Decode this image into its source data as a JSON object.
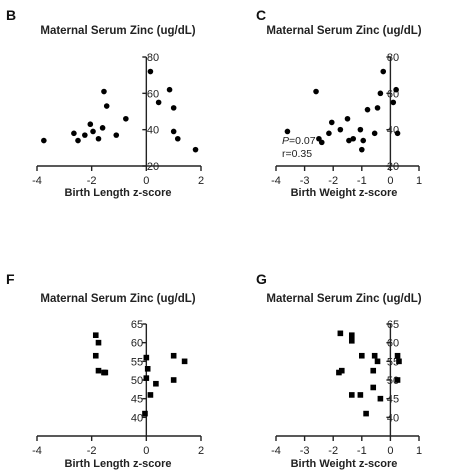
{
  "chart_data": [
    {
      "panel": "B",
      "type": "scatter",
      "title": "Maternal Serum Zinc (ug/dL)",
      "xlabel": "Birth Length z-score",
      "ylabel": "",
      "xlim": [
        -4,
        2
      ],
      "ylim": [
        20,
        80
      ],
      "xticks": [
        -4,
        -2,
        0,
        2
      ],
      "yticks": [
        20,
        40,
        60,
        80
      ],
      "marker": "circle",
      "annotation": [],
      "points": [
        {
          "x": -3.75,
          "y": 34
        },
        {
          "x": -2.65,
          "y": 38
        },
        {
          "x": -2.5,
          "y": 34
        },
        {
          "x": -2.25,
          "y": 37
        },
        {
          "x": -2.05,
          "y": 43
        },
        {
          "x": -1.95,
          "y": 39
        },
        {
          "x": -1.75,
          "y": 35
        },
        {
          "x": -1.6,
          "y": 41
        },
        {
          "x": -1.55,
          "y": 61
        },
        {
          "x": -1.45,
          "y": 53
        },
        {
          "x": -1.1,
          "y": 37
        },
        {
          "x": -0.75,
          "y": 46
        },
        {
          "x": 0.15,
          "y": 72
        },
        {
          "x": 0.45,
          "y": 55
        },
        {
          "x": 0.85,
          "y": 62
        },
        {
          "x": 1.0,
          "y": 52
        },
        {
          "x": 1.0,
          "y": 39
        },
        {
          "x": 1.15,
          "y": 35
        },
        {
          "x": 1.8,
          "y": 29
        }
      ]
    },
    {
      "panel": "C",
      "type": "scatter",
      "title": "Maternal Serum Zinc (ug/dL)",
      "xlabel": "Birth Weight z-score",
      "ylabel": "",
      "xlim": [
        -4,
        1
      ],
      "ylim": [
        20,
        80
      ],
      "xticks": [
        -4,
        -3,
        -2,
        -1,
        0,
        1
      ],
      "yticks": [
        20,
        40,
        60,
        80
      ],
      "marker": "circle",
      "annotation": [
        "P=0.07",
        "r=0.35"
      ],
      "points": [
        {
          "x": -3.6,
          "y": 39
        },
        {
          "x": -2.6,
          "y": 61
        },
        {
          "x": -2.5,
          "y": 35
        },
        {
          "x": -2.4,
          "y": 33
        },
        {
          "x": -2.15,
          "y": 38
        },
        {
          "x": -2.05,
          "y": 44
        },
        {
          "x": -1.75,
          "y": 40
        },
        {
          "x": -1.5,
          "y": 46
        },
        {
          "x": -1.45,
          "y": 34
        },
        {
          "x": -1.3,
          "y": 35
        },
        {
          "x": -1.05,
          "y": 40
        },
        {
          "x": -1.0,
          "y": 29
        },
        {
          "x": -0.95,
          "y": 34
        },
        {
          "x": -0.8,
          "y": 51
        },
        {
          "x": -0.55,
          "y": 38
        },
        {
          "x": -0.45,
          "y": 52
        },
        {
          "x": -0.35,
          "y": 60
        },
        {
          "x": -0.25,
          "y": 72
        },
        {
          "x": 0.1,
          "y": 55
        },
        {
          "x": 0.2,
          "y": 62
        },
        {
          "x": 0.25,
          "y": 38
        }
      ]
    },
    {
      "panel": "F",
      "type": "scatter",
      "title": "Maternal Serum Zinc (ug/dL)",
      "xlabel": "Birth Length z-score",
      "ylabel": "",
      "xlim": [
        -4,
        2
      ],
      "ylim": [
        35,
        65
      ],
      "xticks": [
        -4,
        -2,
        0,
        2
      ],
      "yticks": [
        40,
        45,
        50,
        55,
        60,
        65
      ],
      "marker": "square",
      "annotation": [],
      "points": [
        {
          "x": -1.85,
          "y": 62
        },
        {
          "x": -1.75,
          "y": 60
        },
        {
          "x": -1.85,
          "y": 56.5
        },
        {
          "x": -1.75,
          "y": 52.5
        },
        {
          "x": -1.55,
          "y": 52
        },
        {
          "x": -1.5,
          "y": 52
        },
        {
          "x": 0.0,
          "y": 56
        },
        {
          "x": 0.05,
          "y": 53
        },
        {
          "x": 0.0,
          "y": 50.5
        },
        {
          "x": 0.15,
          "y": 46
        },
        {
          "x": 0.35,
          "y": 49
        },
        {
          "x": -0.05,
          "y": 41
        },
        {
          "x": 1.0,
          "y": 56.5
        },
        {
          "x": 1.0,
          "y": 50
        },
        {
          "x": 1.4,
          "y": 55
        }
      ]
    },
    {
      "panel": "G",
      "type": "scatter",
      "title": "Maternal Serum Zinc (ug/dL)",
      "xlabel": "Birth Weight z-score",
      "ylabel": "",
      "xlim": [
        -4,
        1
      ],
      "ylim": [
        35,
        65
      ],
      "xticks": [
        -4,
        -3,
        -2,
        -1,
        0,
        1
      ],
      "yticks": [
        40,
        45,
        50,
        55,
        60,
        65
      ],
      "marker": "square",
      "annotation": [],
      "points": [
        {
          "x": -1.75,
          "y": 62.5
        },
        {
          "x": -1.35,
          "y": 62
        },
        {
          "x": -1.35,
          "y": 60.5
        },
        {
          "x": -1.8,
          "y": 52
        },
        {
          "x": -1.7,
          "y": 52.5
        },
        {
          "x": -1.0,
          "y": 56.5
        },
        {
          "x": -0.55,
          "y": 56.5
        },
        {
          "x": -0.6,
          "y": 52.5
        },
        {
          "x": -0.45,
          "y": 55
        },
        {
          "x": -0.6,
          "y": 48
        },
        {
          "x": -1.35,
          "y": 46
        },
        {
          "x": -1.05,
          "y": 46
        },
        {
          "x": -0.85,
          "y": 41
        },
        {
          "x": -0.35,
          "y": 45
        },
        {
          "x": 0.25,
          "y": 56.5
        },
        {
          "x": 0.3,
          "y": 55
        },
        {
          "x": 0.25,
          "y": 50
        }
      ]
    }
  ]
}
